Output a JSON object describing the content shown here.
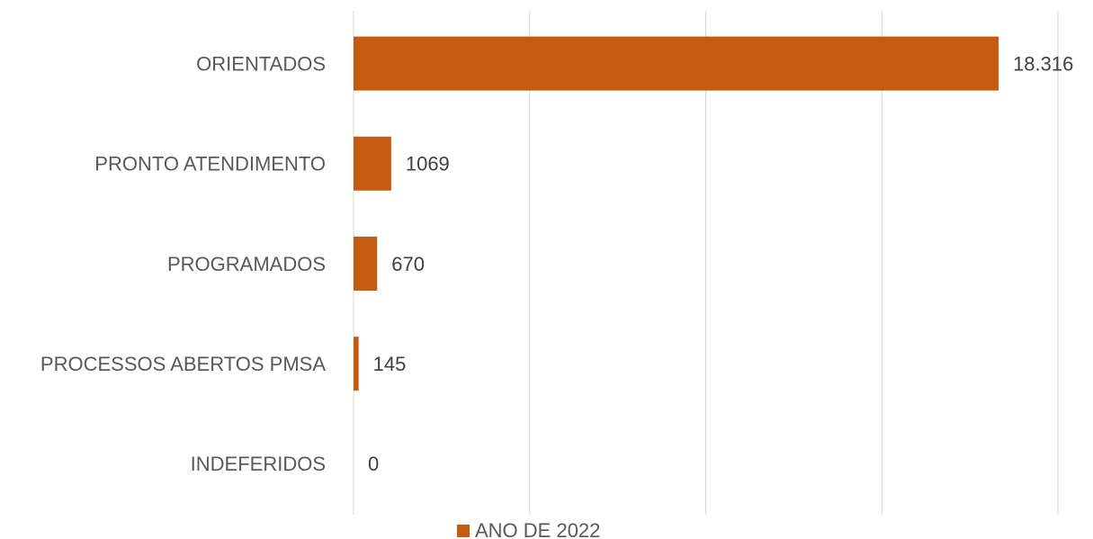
{
  "chart_data": {
    "type": "bar",
    "orientation": "horizontal",
    "categories": [
      "ORIENTADOS",
      "PRONTO ATENDIMENTO",
      "PROGRAMADOS",
      "PROCESSOS ABERTOS PMSA",
      "INDEFERIDOS"
    ],
    "series": [
      {
        "name": "ANO DE 2022",
        "color": "#c55a11",
        "values": [
          18316,
          1069,
          670,
          145,
          0
        ],
        "value_labels": [
          "18.316",
          "1069",
          "670",
          "145",
          "0"
        ]
      }
    ],
    "xlim": [
      0,
      20000
    ],
    "xticks": [
      0,
      5000,
      10000,
      15000,
      20000
    ],
    "grid": true,
    "legend": "bottom"
  }
}
